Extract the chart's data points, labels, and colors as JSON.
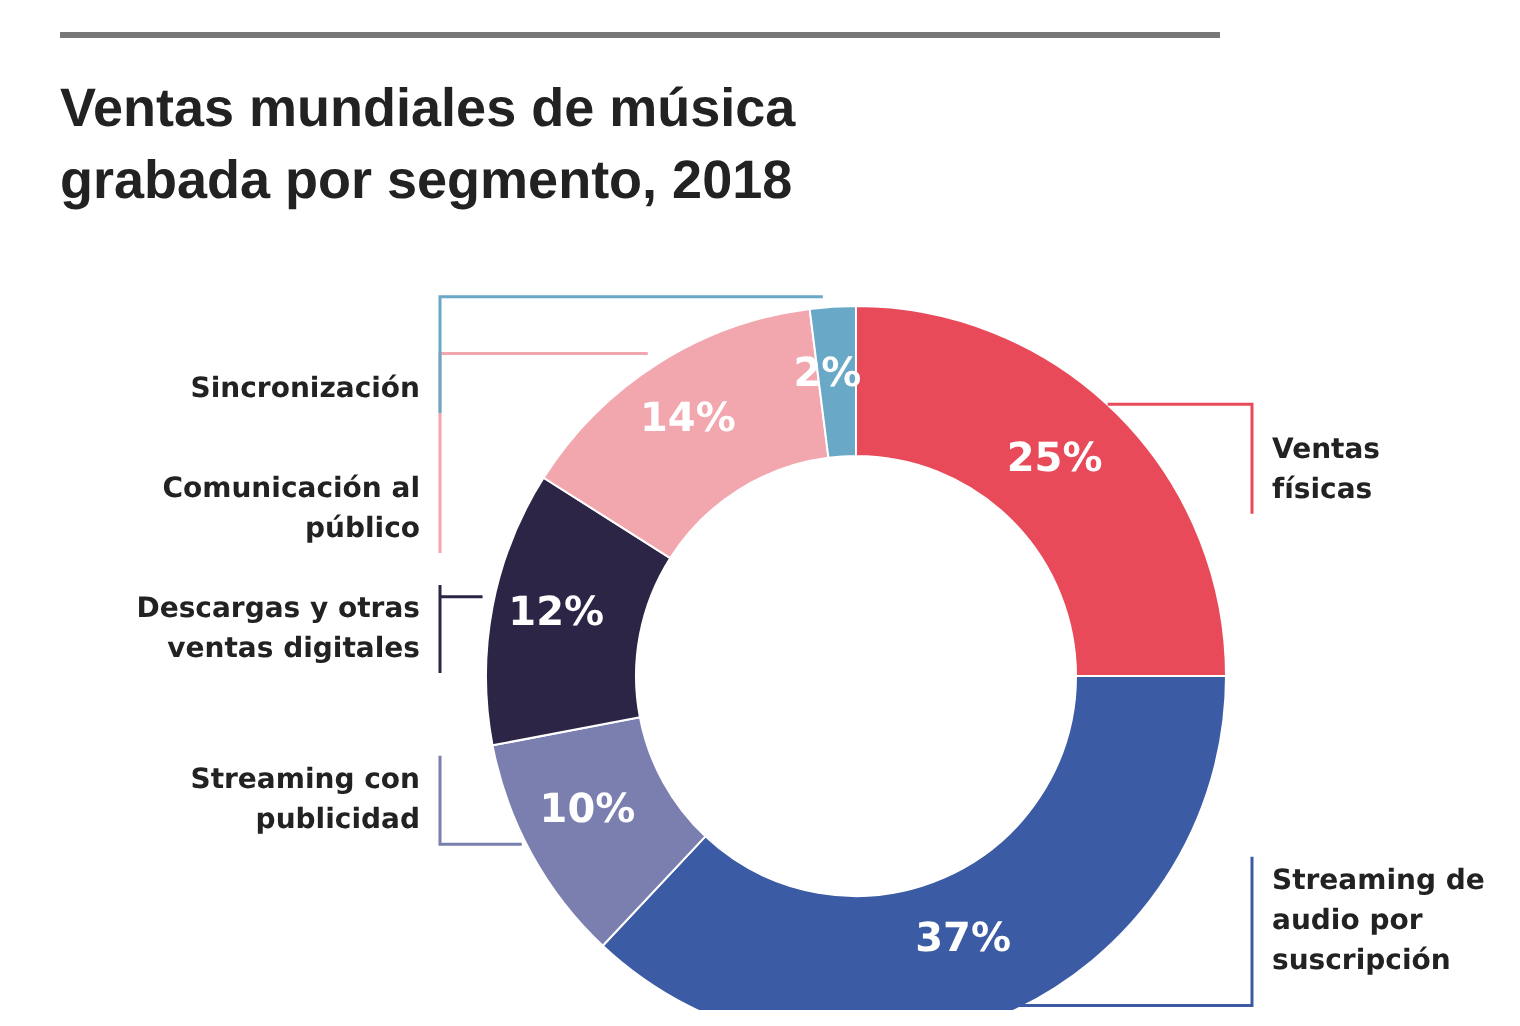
{
  "chart_data": {
    "type": "donut",
    "title": "Ventas mundiales de música grabada por segmento, 2018",
    "categories": [
      "Ventas físicas",
      "Streaming de audio por suscripción",
      "Streaming con publicidad",
      "Descargas y otras ventas digitales",
      "Comunicación al público",
      "Sincronización"
    ],
    "values": [
      25,
      37,
      10,
      12,
      14,
      2
    ],
    "colors": [
      "#e84a5a",
      "#3b5ba5",
      "#7a7fb0",
      "#2d2545",
      "#f2a7ae",
      "#6aa8c8"
    ],
    "value_labels": [
      "25%",
      "37%",
      "10%",
      "12%",
      "14%",
      "2%"
    ]
  }
}
